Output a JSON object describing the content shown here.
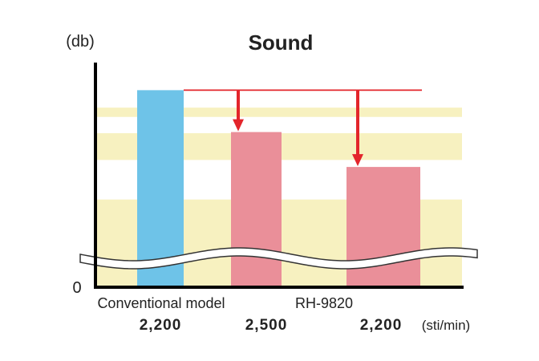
{
  "chart_data": {
    "type": "bar",
    "title": "Sound",
    "ylabel": "(db)",
    "y_zero_label": "0",
    "x_unit": "(sti/min)",
    "groups": [
      "Conventional model",
      "RH-9820"
    ],
    "categories": [
      "2,200",
      "2,500",
      "2,200"
    ],
    "bar_groups": [
      "Conventional model",
      "RH-9820",
      "RH-9820"
    ],
    "values": [
      0.84,
      0.66,
      0.51
    ],
    "reference_value": 0.84,
    "ylim": [
      0,
      1
    ],
    "axis_break": true,
    "grid": "alternating bands",
    "colors": {
      "conventional": "#6ec3e8",
      "rh9820": "#ea8f99",
      "band": "#f7f1c0",
      "arrow": "#e3252b",
      "axis": "#000000"
    }
  }
}
